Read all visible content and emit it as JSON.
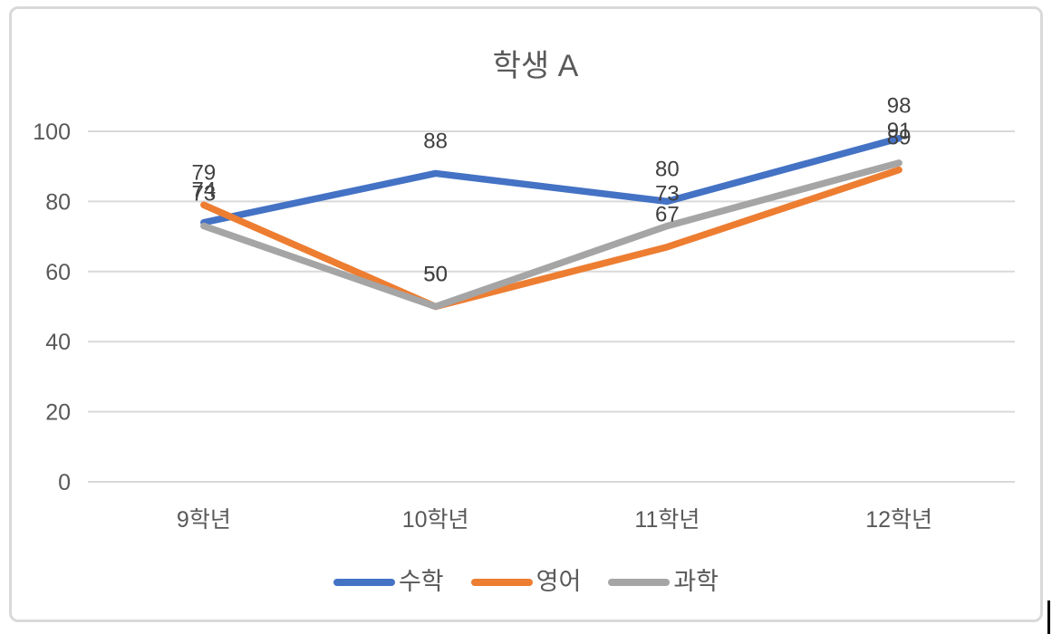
{
  "theme": {
    "background": "#FFFFFF",
    "frame_border": "#D9D9D9",
    "gridline": "#D9D9D9",
    "axis_text": "#595959",
    "title_text": "#595959",
    "legend_text": "#595959",
    "data_label_text": "#404040",
    "cursor_artifact": "#000000"
  },
  "chart_data": {
    "type": "line",
    "title": "학생 A",
    "categories": [
      "9학년",
      "10학년",
      "11학년",
      "12학년"
    ],
    "series": [
      {
        "name": "수학",
        "color": "#4472C4",
        "values": [
          74,
          88,
          80,
          98
        ]
      },
      {
        "name": "영어",
        "color": "#ED7D31",
        "values": [
          79,
          50,
          67,
          89
        ]
      },
      {
        "name": "과학",
        "color": "#A5A5A5",
        "values": [
          73,
          50,
          73,
          91
        ]
      }
    ],
    "xlabel": "",
    "ylabel": "",
    "ylim": [
      0,
      100
    ],
    "yticks": [
      0,
      20,
      40,
      60,
      80,
      100
    ],
    "grid": true,
    "data_labels": true,
    "legend_position": "bottom"
  }
}
